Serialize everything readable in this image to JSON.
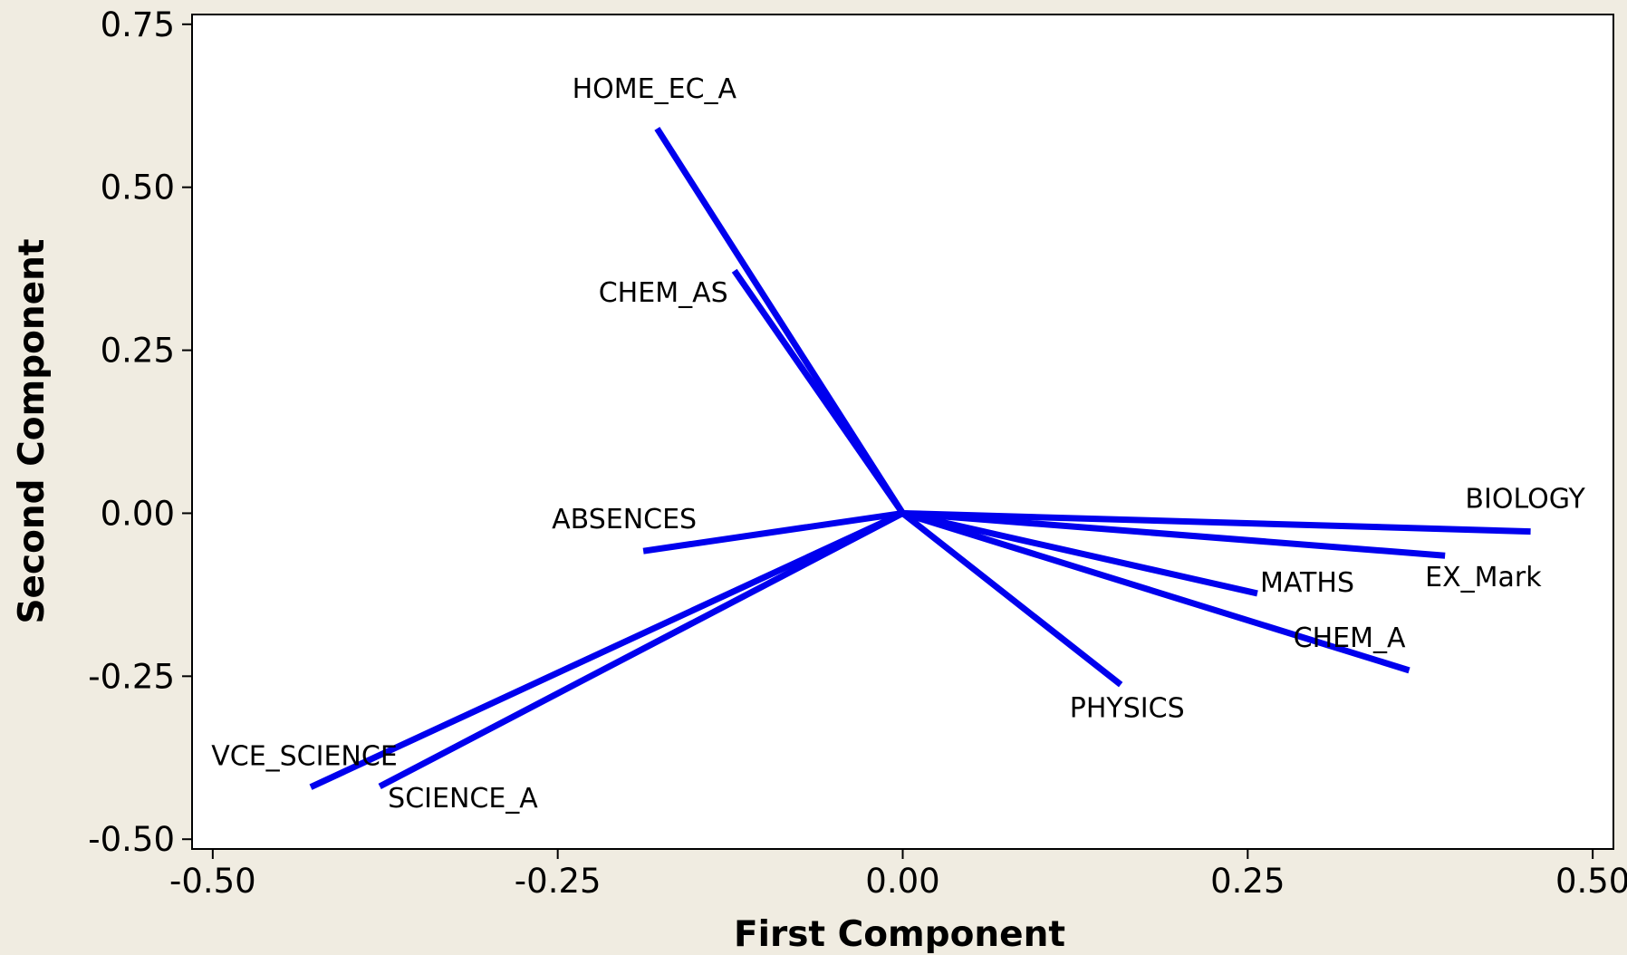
{
  "chart_data": {
    "type": "line",
    "xlabel": "First Component",
    "ylabel": "Second Component",
    "xlim": [
      -0.515,
      0.515
    ],
    "ylim": [
      -0.515,
      0.765
    ],
    "xticks": [
      -0.5,
      -0.25,
      0.0,
      0.25,
      0.5
    ],
    "xtick_labels": [
      "-0.50",
      "-0.25",
      "0.00",
      "0.25",
      "0.50"
    ],
    "yticks": [
      -0.5,
      -0.25,
      0.0,
      0.25,
      0.5,
      0.75
    ],
    "ytick_labels": [
      "-0.50",
      "-0.25",
      "0.00",
      "0.25",
      "0.50",
      "0.75"
    ],
    "grid": false,
    "series_color": "#0000ee",
    "vectors": [
      {
        "label": "HOME_EC_A",
        "x": -0.178,
        "y": 0.59
      },
      {
        "label": "CHEM_AS",
        "x": -0.122,
        "y": 0.372
      },
      {
        "label": "ABSENCES",
        "x": -0.188,
        "y": -0.058
      },
      {
        "label": "VCE_SCIENCE",
        "x": -0.429,
        "y": -0.42
      },
      {
        "label": "SCIENCE_A",
        "x": -0.379,
        "y": -0.419
      },
      {
        "label": "BIOLOGY",
        "x": 0.455,
        "y": -0.028
      },
      {
        "label": "EX_Mark",
        "x": 0.393,
        "y": -0.065
      },
      {
        "label": "MATHS",
        "x": 0.257,
        "y": -0.123
      },
      {
        "label": "CHEM_A",
        "x": 0.367,
        "y": -0.241
      },
      {
        "label": "PHYSICS",
        "x": 0.158,
        "y": -0.263
      }
    ]
  }
}
